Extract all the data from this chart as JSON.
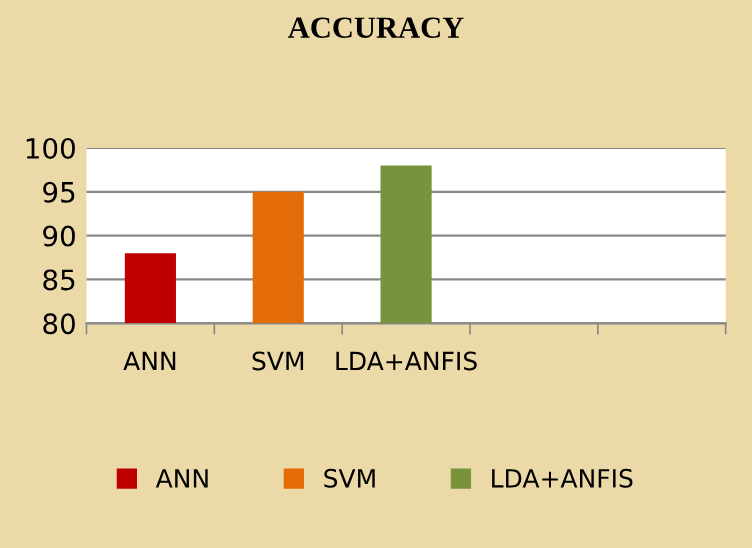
{
  "chart_data": {
    "type": "bar",
    "title": "ACCURACY",
    "categories": [
      "ANN",
      "SVM",
      "LDA+ANFIS",
      null,
      null
    ],
    "series": [
      {
        "name": "ANN",
        "color": "#c00000",
        "values": [
          88,
          null,
          null,
          null,
          null
        ]
      },
      {
        "name": "SVM",
        "color": "#e36c09",
        "values": [
          null,
          95,
          null,
          null,
          null
        ]
      },
      {
        "name": "LDA+ANFIS",
        "color": "#77933c",
        "values": [
          null,
          null,
          98,
          null,
          null
        ]
      }
    ],
    "ylim": [
      80,
      100
    ],
    "yticks": [
      80,
      85,
      90,
      95,
      100
    ],
    "grid": "y",
    "legend": "bottom"
  }
}
